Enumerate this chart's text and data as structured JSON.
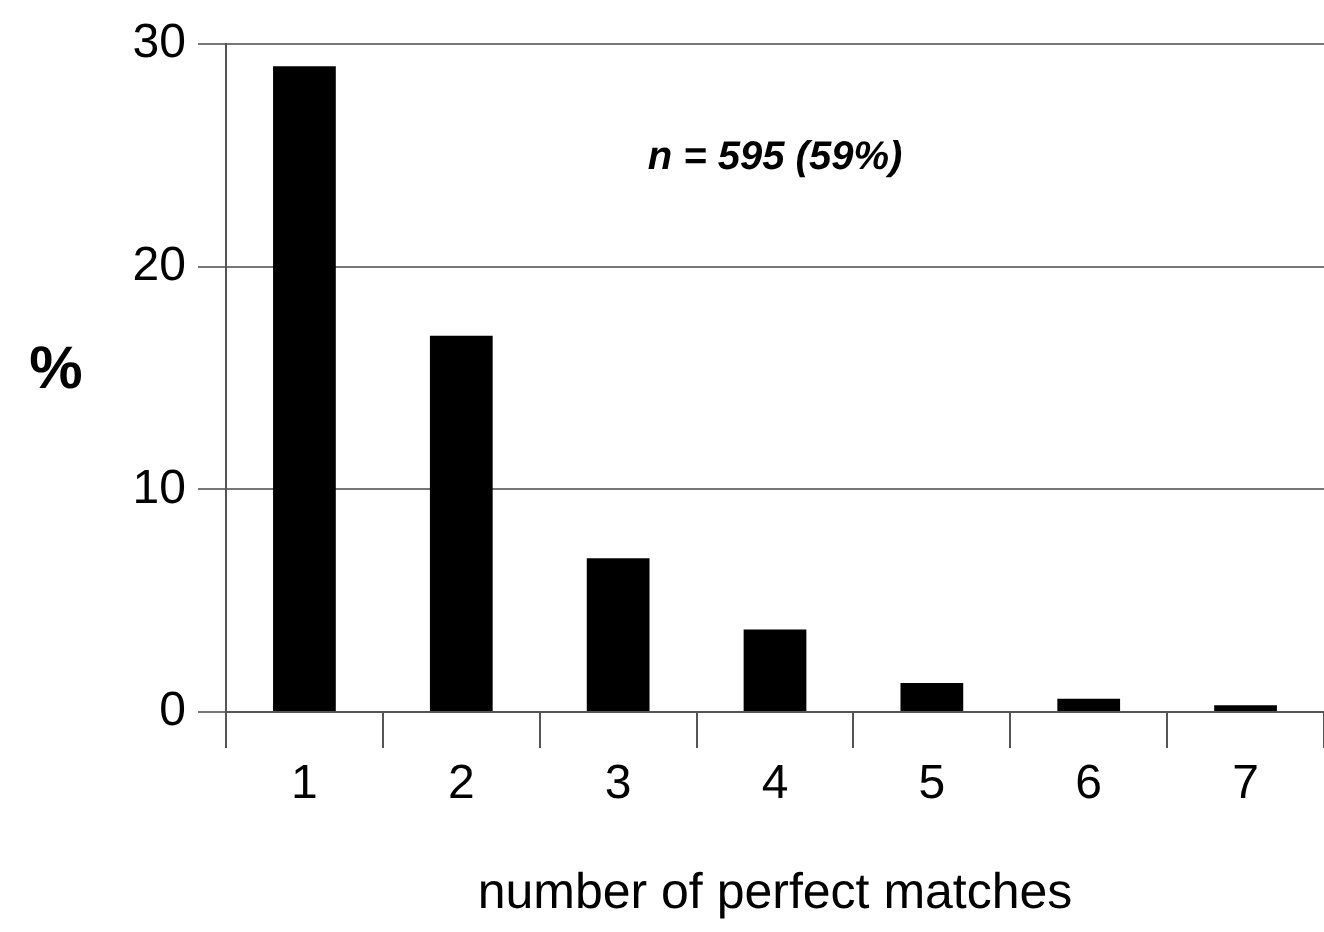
{
  "chart_data": {
    "type": "bar",
    "categories": [
      "1",
      "2",
      "3",
      "4",
      "5",
      "6",
      "7"
    ],
    "values": [
      29,
      16.9,
      6.9,
      3.7,
      1.3,
      0.6,
      0.3
    ],
    "color": "#000000",
    "xlabel": "number of perfect matches",
    "ylabel": "%",
    "ylim": [
      0,
      30
    ],
    "yticks": [
      0,
      10,
      20,
      30
    ],
    "grid": "y",
    "legend": false,
    "annotations": [
      "n = 595 (59%)"
    ]
  }
}
